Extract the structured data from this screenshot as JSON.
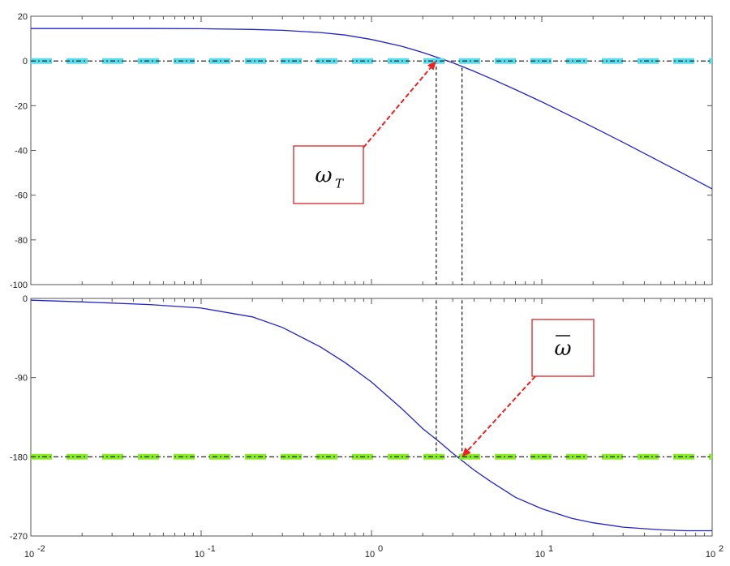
{
  "chart_data": [
    {
      "type": "line",
      "panel": "magnitude",
      "xscale": "log",
      "xlim": [
        0.01,
        100
      ],
      "ylim": [
        -100,
        20
      ],
      "yticks": [
        "20",
        "0",
        "-20",
        "-40",
        "-60",
        "-80",
        "-100"
      ],
      "xticks": [
        "10",
        "10",
        "10",
        "10",
        "10"
      ],
      "xtick_exponents": [
        "-2",
        "-1",
        "0",
        "1",
        "2"
      ],
      "grid": false,
      "series": [
        {
          "color": "#2222cc",
          "style": "solid",
          "x": [
            0.01,
            0.02,
            0.05,
            0.1,
            0.2,
            0.3,
            0.5,
            0.7,
            1,
            1.5,
            2,
            2.5,
            3,
            4,
            5,
            7,
            10,
            15,
            20,
            30,
            50,
            70,
            100
          ],
          "y": [
            14.5,
            14.5,
            14.5,
            14.4,
            14.1,
            13.7,
            12.7,
            11.6,
            9.6,
            6.6,
            3.8,
            1.3,
            -0.8,
            -4.6,
            -7.8,
            -12.8,
            -18.3,
            -24.9,
            -29.6,
            -36.4,
            -45.2,
            -51.0,
            -57.2
          ]
        },
        {
          "color": "#55ddee",
          "style": "dashed-thick",
          "x": [
            0.01,
            100
          ],
          "y": [
            0,
            0
          ]
        },
        {
          "color": "#111111",
          "style": "dash-dot",
          "x": [
            0.01,
            100
          ],
          "y": [
            0,
            0
          ]
        }
      ],
      "vlines": [
        {
          "x": 2.4,
          "y_from": 0,
          "style": "dashed"
        },
        {
          "x": 3.4,
          "y_from": -3,
          "style": "dashed"
        }
      ],
      "annotations": [
        {
          "text": "ω",
          "subscript": "T",
          "target_x": 2.4,
          "target_y": 0
        }
      ]
    },
    {
      "type": "line",
      "panel": "phase",
      "xscale": "log",
      "xlim": [
        0.01,
        100
      ],
      "ylim": [
        -270,
        0
      ],
      "yticks": [
        "0",
        "-90",
        "-180",
        "-270"
      ],
      "xticks": [
        "10",
        "10",
        "10",
        "10",
        "10"
      ],
      "xtick_exponents": [
        "-2",
        "-1",
        "0",
        "1",
        "2"
      ],
      "grid": false,
      "series": [
        {
          "color": "#2222cc",
          "style": "solid",
          "x": [
            0.01,
            0.02,
            0.05,
            0.1,
            0.2,
            0.3,
            0.5,
            0.7,
            1,
            1.5,
            2,
            2.5,
            3,
            4,
            5,
            7,
            10,
            15,
            20,
            30,
            50,
            70,
            100
          ],
          "y": [
            -2,
            -4,
            -7,
            -11,
            -21,
            -33,
            -55,
            -73,
            -95,
            -125,
            -148,
            -163,
            -176,
            -195,
            -208,
            -226,
            -239,
            -250,
            -255,
            -260,
            -263,
            -264,
            -264
          ]
        },
        {
          "color": "#88ee22",
          "style": "dashed-thick",
          "x": [
            0.01,
            100
          ],
          "y": [
            -180,
            -180
          ]
        },
        {
          "color": "#111111",
          "style": "dash-dot",
          "x": [
            0.01,
            100
          ],
          "y": [
            -180,
            -180
          ]
        }
      ],
      "vlines": [
        {
          "x": 2.4,
          "y_from": -180,
          "style": "dashed"
        },
        {
          "x": 3.4,
          "y_from": -180,
          "style": "dashed"
        }
      ],
      "annotations": [
        {
          "text": "ω",
          "overline": true,
          "target_x": 3.4,
          "target_y": -180
        }
      ]
    }
  ]
}
